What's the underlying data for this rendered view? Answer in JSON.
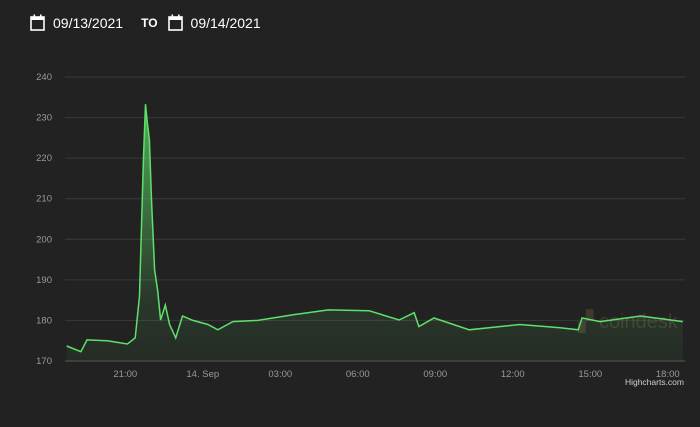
{
  "date_range": {
    "from": "09/13/2021",
    "separator": "TO",
    "to": "09/14/2021",
    "icon": "calendar-icon"
  },
  "watermark": "coindesk",
  "credit": "Highcharts.com",
  "colors": {
    "background": "#222222",
    "line": "#5fe06b",
    "grid": "#3a3a3a"
  },
  "chart_data": {
    "type": "area",
    "title": "",
    "xlabel": "",
    "ylabel": "",
    "ylim": [
      170,
      240
    ],
    "yticks": [
      "170",
      "180",
      "190",
      "200",
      "210",
      "220",
      "230",
      "240"
    ],
    "xlim": [
      "09-13 18:40",
      "09-14 18:40"
    ],
    "xticks": [
      {
        "t": "09-13 21:00",
        "label": "21:00"
      },
      {
        "t": "09-14 00:00",
        "label": "14. Sep"
      },
      {
        "t": "09-14 03:00",
        "label": "03:00"
      },
      {
        "t": "09-14 06:00",
        "label": "06:00"
      },
      {
        "t": "09-14 09:00",
        "label": "09:00"
      },
      {
        "t": "09-14 12:00",
        "label": "12:00"
      },
      {
        "t": "09-14 15:00",
        "label": "15:00"
      },
      {
        "t": "09-14 18:00",
        "label": "18:00"
      }
    ],
    "grid": true,
    "legend": "none",
    "points": [
      [
        "09-13 18:44",
        173.7
      ],
      [
        "09-13 19:17",
        172.3
      ],
      [
        "09-13 19:31",
        175.2
      ],
      [
        "09-13 20:18",
        175.0
      ],
      [
        "09-13 21:05",
        174.2
      ],
      [
        "09-13 21:23",
        175.7
      ],
      [
        "09-13 21:33",
        186.0
      ],
      [
        "09-13 21:42",
        219.6
      ],
      [
        "09-13 21:47",
        233.3
      ],
      [
        "09-13 21:51",
        229.0
      ],
      [
        "09-13 21:56",
        224.5
      ],
      [
        "09-13 22:01",
        209.7
      ],
      [
        "09-13 22:08",
        192.5
      ],
      [
        "09-13 22:15",
        187.5
      ],
      [
        "09-13 22:22",
        180.1
      ],
      [
        "09-13 22:33",
        183.8
      ],
      [
        "09-13 22:43",
        179.0
      ],
      [
        "09-13 22:57",
        175.7
      ],
      [
        "09-13 23:13",
        181.1
      ],
      [
        "09-13 23:37",
        180.0
      ],
      [
        "09-14 00:12",
        179.0
      ],
      [
        "09-14 00:35",
        177.7
      ],
      [
        "09-14 01:10",
        179.7
      ],
      [
        "09-14 02:08",
        180.0
      ],
      [
        "09-14 03:30",
        181.4
      ],
      [
        "09-14 04:52",
        182.6
      ],
      [
        "09-14 06:26",
        182.4
      ],
      [
        "09-14 07:36",
        180.1
      ],
      [
        "09-14 08:11",
        181.9
      ],
      [
        "09-14 08:22",
        178.5
      ],
      [
        "09-14 08:57",
        180.6
      ],
      [
        "09-14 10:19",
        177.7
      ],
      [
        "09-14 12:16",
        179.0
      ],
      [
        "09-14 13:50",
        178.2
      ],
      [
        "09-14 14:32",
        177.7
      ],
      [
        "09-14 14:41",
        180.6
      ],
      [
        "09-14 15:23",
        179.7
      ],
      [
        "09-14 16:57",
        181.1
      ],
      [
        "09-14 18:35",
        179.7
      ]
    ]
  }
}
